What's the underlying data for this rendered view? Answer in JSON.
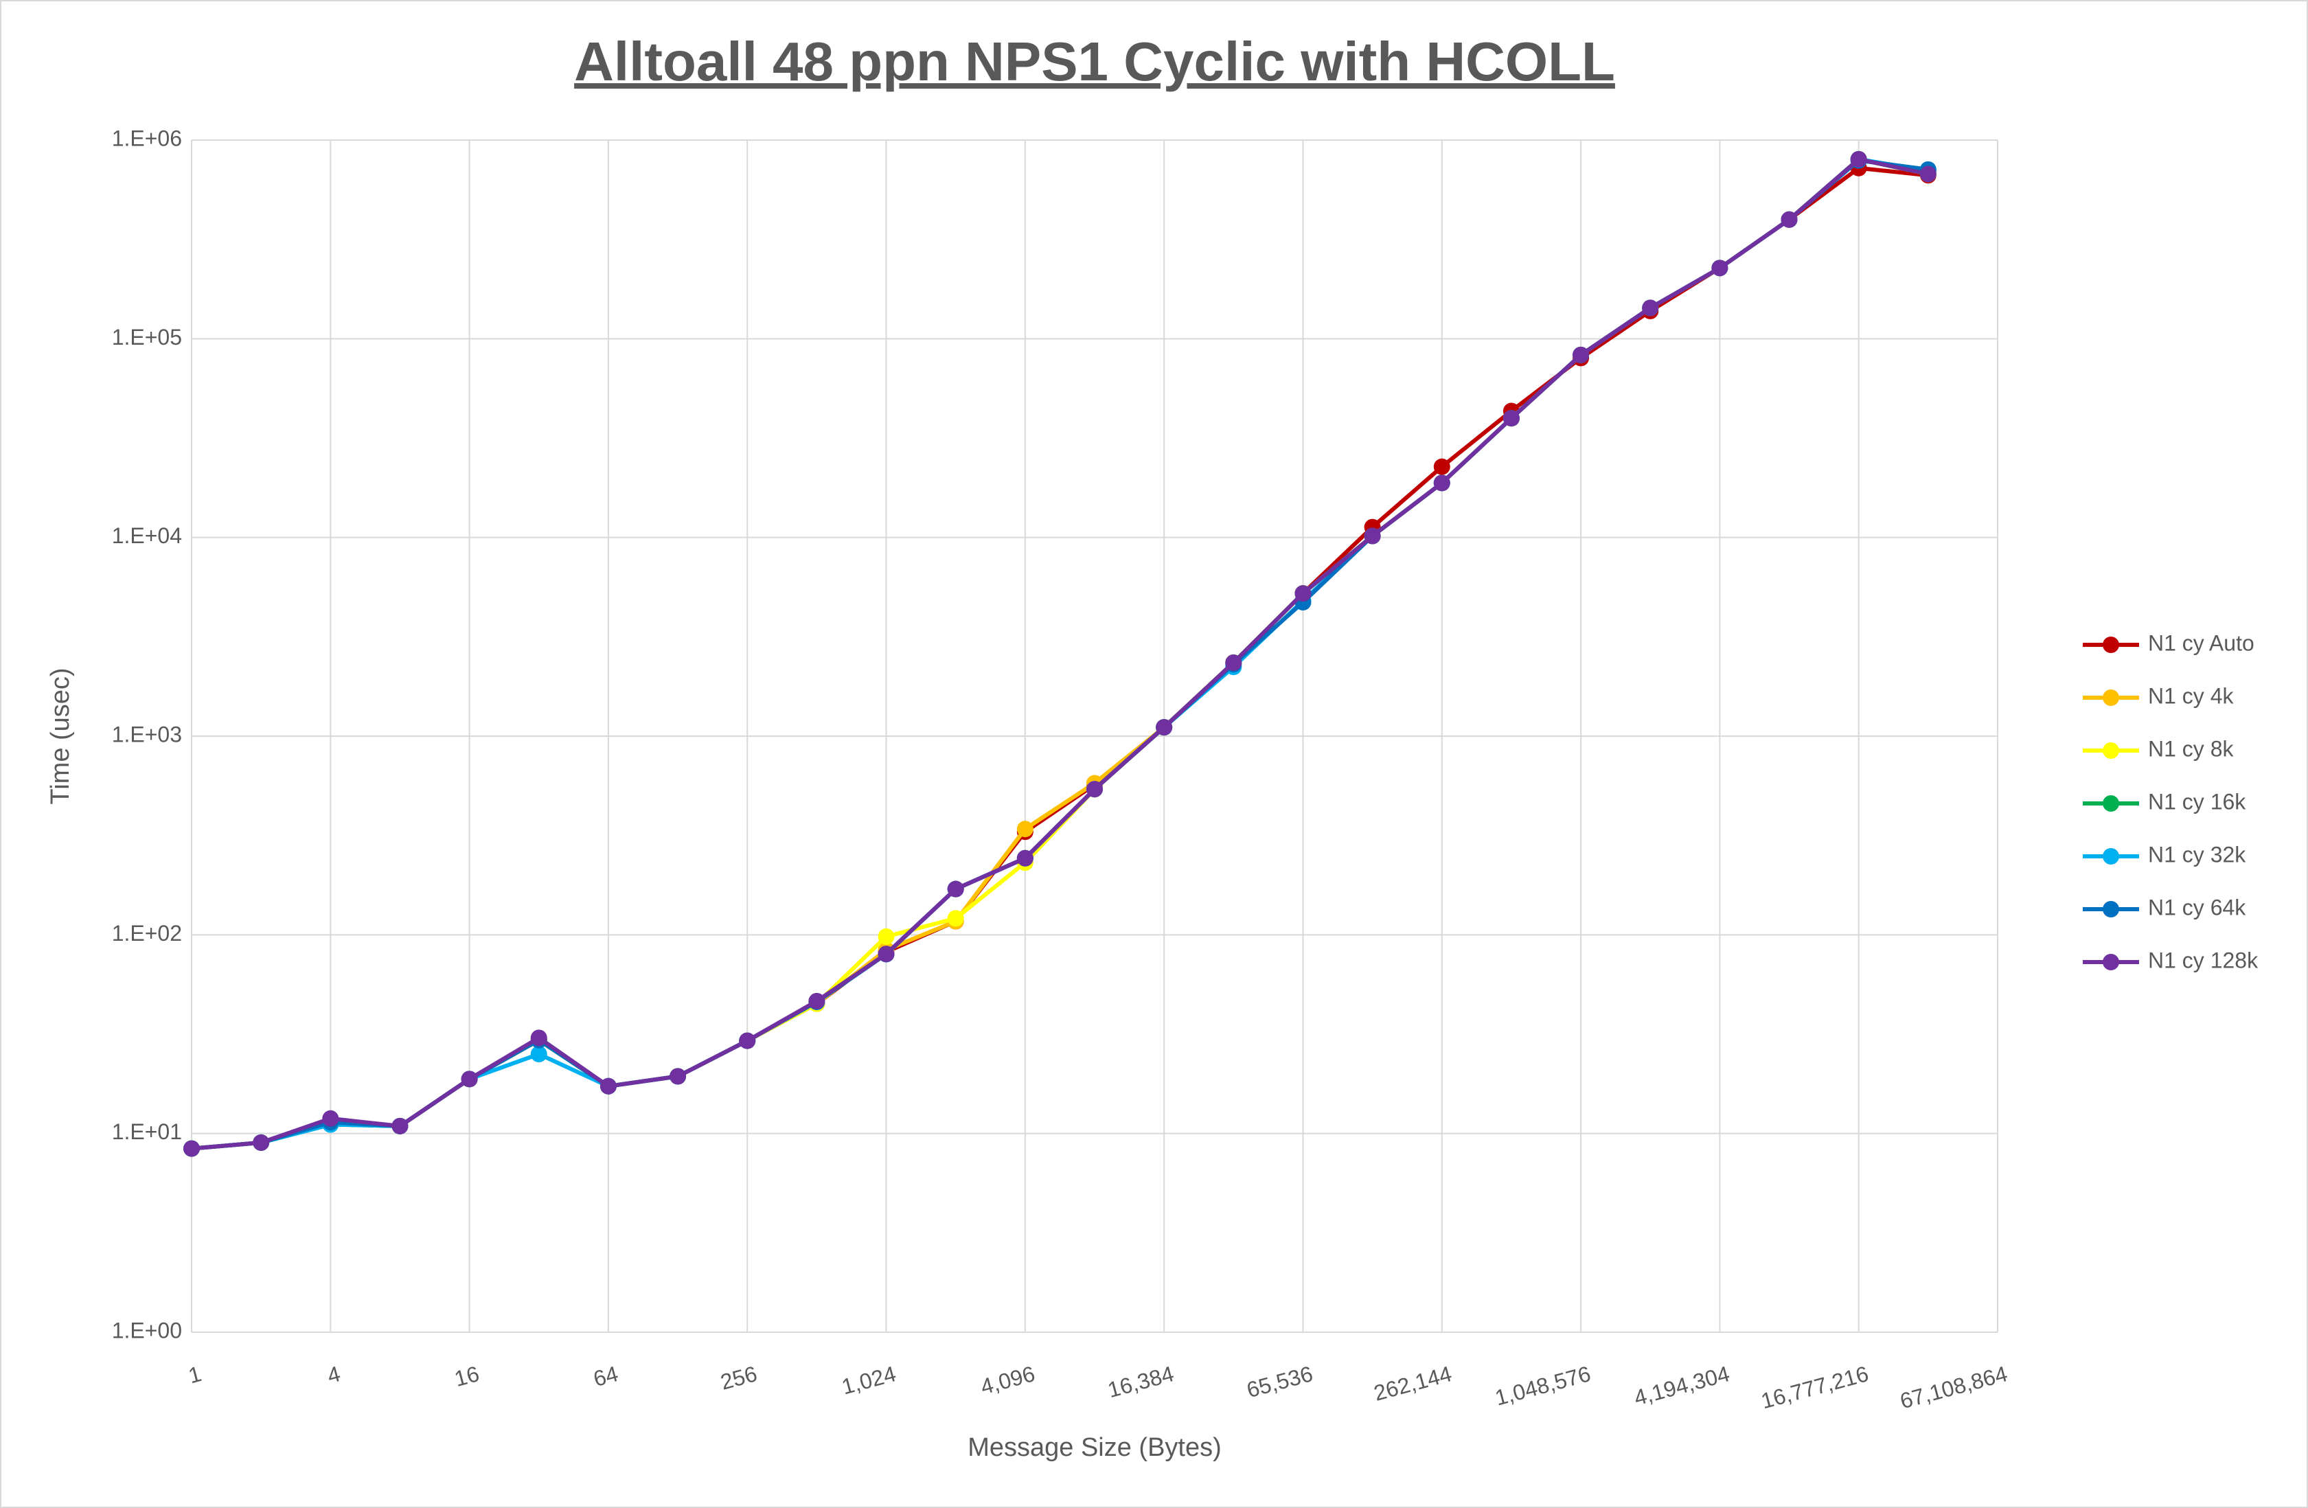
{
  "chart_data": {
    "type": "line",
    "title": "Alltoall 48 ppn NPS1 Cyclic with HCOLL",
    "x_label": "Message Size (Bytes)",
    "y_label": "Time (usec)",
    "x_log_base": 2,
    "y_log_base": 10,
    "grid": true,
    "legend": "right",
    "x": [
      1,
      2,
      4,
      8,
      16,
      32,
      64,
      128,
      256,
      512,
      1024,
      2048,
      4096,
      8192,
      16384,
      32768,
      65536,
      131072,
      262144,
      524288,
      1048576,
      2097152,
      4194304,
      8388608,
      16777216,
      33554432
    ],
    "xlim": [
      1,
      67108864
    ],
    "xticks": [
      1,
      4,
      16,
      64,
      256,
      {
        "value": 1024,
        "label": "1,024"
      },
      {
        "value": 4096,
        "label": "4,096"
      },
      {
        "value": 16384,
        "label": "16,384"
      },
      {
        "value": 65536,
        "label": "65,536"
      },
      {
        "value": 262144,
        "label": "262,144"
      },
      {
        "value": 1048576,
        "label": "1,048,576"
      },
      {
        "value": 4194304,
        "label": "4,194,304"
      },
      {
        "value": 16777216,
        "label": "16,777,216"
      },
      {
        "value": 67108864,
        "label": "67,108,864"
      }
    ],
    "ylim": [
      1,
      1000000
    ],
    "yticks": [
      {
        "value": 1,
        "label": "1.E+00"
      },
      {
        "value": 10,
        "label": "1.E+01"
      },
      {
        "value": 100,
        "label": "1.E+02"
      },
      {
        "value": 1000,
        "label": "1.E+03"
      },
      {
        "value": 10000,
        "label": "1.E+04"
      },
      {
        "value": 100000,
        "label": "1.E+05"
      },
      {
        "value": 1000000,
        "label": "1.E+06"
      }
    ],
    "series": [
      {
        "name": "N1 cy Auto",
        "color": "#c00000",
        "values": [
          8.4,
          9.0,
          11.4,
          10.9,
          18.8,
          29.5,
          17.3,
          19.4,
          29.3,
          45,
          82,
          117,
          330,
          570,
          1108,
          2344,
          5230,
          11270,
          22700,
          43300,
          80000,
          138000,
          227000,
          398000,
          723000,
          665000
        ]
      },
      {
        "name": "N1 cy 4k",
        "color": "#ffc000",
        "values": [
          8.4,
          9.0,
          11.4,
          10.9,
          18.8,
          29.5,
          17.3,
          19.4,
          29.3,
          45,
          84,
          117,
          341,
          580,
          1108,
          2344,
          5230,
          10170,
          18800,
          39800,
          82900,
          143000,
          227000,
          398000,
          801000,
          675000
        ]
      },
      {
        "name": "N1 cy 8k",
        "color": "#ffff00",
        "values": [
          8.4,
          9.0,
          11.4,
          10.9,
          18.8,
          29.5,
          17.3,
          19.4,
          29.3,
          45,
          98,
          121,
          231,
          540,
          1108,
          2344,
          5230,
          10170,
          18800,
          39800,
          82900,
          143000,
          227000,
          398000,
          801000,
          675000
        ]
      },
      {
        "name": "N1 cy 16k",
        "color": "#00b050",
        "values": [
          8.4,
          9.0,
          11.1,
          10.9,
          18.8,
          29.5,
          17.3,
          19.4,
          29.3,
          46,
          80,
          170,
          243,
          541,
          1108,
          2344,
          5230,
          10170,
          18800,
          39800,
          82900,
          143000,
          227000,
          398000,
          801000,
          675000
        ]
      },
      {
        "name": "N1 cy 32k",
        "color": "#00b0f0",
        "values": [
          8.4,
          9.0,
          11.1,
          10.9,
          18.8,
          25.1,
          17.3,
          19.4,
          29.3,
          46,
          80,
          170,
          243,
          541,
          1108,
          2230,
          4800,
          10170,
          18800,
          39800,
          82900,
          143000,
          227000,
          398000,
          801000,
          700000
        ]
      },
      {
        "name": "N1 cy 64k",
        "color": "#0070c0",
        "values": [
          8.4,
          9.0,
          11.4,
          10.9,
          18.8,
          29.5,
          17.3,
          19.4,
          29.3,
          46,
          80,
          170,
          243,
          541,
          1108,
          2300,
          4720,
          10170,
          18800,
          39800,
          82900,
          143000,
          227000,
          398000,
          790000,
          711000
        ]
      },
      {
        "name": "N1 cy 128k",
        "color": "#7030a0",
        "values": [
          8.4,
          9.0,
          11.9,
          10.9,
          18.8,
          30.3,
          17.3,
          19.4,
          29.3,
          46.4,
          80.1,
          170,
          243,
          541,
          1108,
          2344,
          5230,
          10170,
          18800,
          39800,
          82900,
          143000,
          227000,
          398000,
          801000,
          675000
        ]
      }
    ]
  }
}
